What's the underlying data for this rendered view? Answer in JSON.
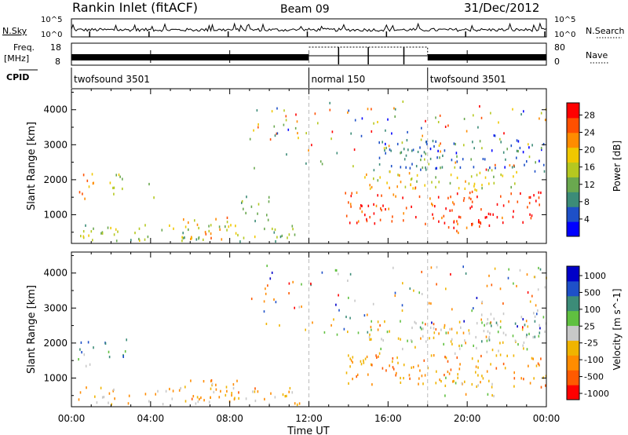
{
  "header": {
    "station": "Rankin Inlet (fitACF)",
    "beam": "Beam 09",
    "date": "31/Dec/2012"
  },
  "top_panels": {
    "nsky_label": "N.Sky",
    "nsearch_label": "N.Search",
    "noise_ticks_left": [
      "10^5",
      "10^0"
    ],
    "noise_ticks_right": [
      "10^5",
      "10^0"
    ],
    "freq_label": "Freq.",
    "freq_unit": "[MHz]",
    "freq_ticks": [
      "18",
      "8"
    ],
    "nave_ticks": [
      "80",
      "0"
    ],
    "nave_label": "Nave",
    "cpid_label": "CPID",
    "cpid_segments": [
      {
        "label": "twofsound 3501",
        "start_hour": 0,
        "end_hour": 12
      },
      {
        "label": "normal 150",
        "start_hour": 12,
        "end_hour": 18
      },
      {
        "label": "twofsound 3501",
        "start_hour": 18,
        "end_hour": 24
      }
    ]
  },
  "xaxis": {
    "title": "Time UT",
    "ticks": [
      "00:00",
      "04:00",
      "08:00",
      "12:00",
      "16:00",
      "20:00",
      "00:00"
    ]
  },
  "chart_data": [
    {
      "type": "heatmap",
      "panel": "power",
      "xlabel": "Time UT",
      "ylabel": "Slant Range [km]",
      "xlim": [
        0,
        24
      ],
      "ylim": [
        180,
        4600
      ],
      "yticks": [
        1000,
        2000,
        3000,
        4000
      ],
      "colorbar": {
        "label": "Power [dB]",
        "ticks": [
          "4",
          "8",
          "12",
          "16",
          "20",
          "24",
          "28"
        ],
        "range": [
          0,
          30
        ],
        "colors": [
          "#0000ff",
          "#1e50c8",
          "#3c8c78",
          "#6aa84f",
          "#b5c820",
          "#f0c800",
          "#ff8c00",
          "#ff5000",
          "#ff0000"
        ]
      },
      "regions": [
        {
          "t0": 0.2,
          "t1": 1.1,
          "r0": 1300,
          "r1": 2200,
          "level": 0.75
        },
        {
          "t0": 1.6,
          "t1": 2.8,
          "r0": 1500,
          "r1": 2150,
          "level": 0.55
        },
        {
          "t0": 3.8,
          "t1": 4.2,
          "r0": 1400,
          "r1": 1900,
          "level": 0.3
        },
        {
          "t0": 0.3,
          "t1": 11.5,
          "r0": 200,
          "r1": 700,
          "level": 0.45
        },
        {
          "t0": 5.5,
          "t1": 8.5,
          "r0": 250,
          "r1": 900,
          "level": 0.7
        },
        {
          "t0": 8.5,
          "t1": 10.0,
          "r0": 700,
          "r1": 1500,
          "level": 0.35
        },
        {
          "t0": 13.8,
          "t1": 24.0,
          "r0": 700,
          "r1": 1650,
          "level": 0.92
        },
        {
          "t0": 14.5,
          "t1": 22.5,
          "r0": 1650,
          "r1": 2200,
          "level": 0.55
        },
        {
          "t0": 18.5,
          "t1": 21.5,
          "r0": 450,
          "r1": 1000,
          "level": 0.95
        },
        {
          "t0": 15.5,
          "t1": 24.0,
          "r0": 2200,
          "r1": 3100,
          "level": 0.2
        },
        {
          "t0": 16.5,
          "t1": 17.5,
          "r0": 1700,
          "r1": 2500,
          "level": 0.65
        }
      ]
    },
    {
      "type": "heatmap",
      "panel": "velocity",
      "xlabel": "Time UT",
      "ylabel": "Slant Range [km]",
      "xlim": [
        0,
        24
      ],
      "ylim": [
        180,
        4600
      ],
      "yticks": [
        1000,
        2000,
        3000,
        4000
      ],
      "colorbar": {
        "label": "Velocity [m s^-1]",
        "ticks": [
          "1000",
          "500",
          "100",
          "25",
          "-25",
          "-100",
          "-500",
          "-1000"
        ],
        "range": [
          -1000,
          1000
        ],
        "colors": [
          "#ff0000",
          "#ff5a00",
          "#ff8c00",
          "#f0b400",
          "#c8c8c8",
          "#60c040",
          "#3c8c78",
          "#1e50c8",
          "#0000c8"
        ]
      },
      "regions": [
        {
          "t0": 0.2,
          "t1": 1.1,
          "r0": 1300,
          "r1": 2200,
          "level": 0.7
        },
        {
          "t0": 1.6,
          "t1": 2.8,
          "r0": 1500,
          "r1": 2150,
          "level": 0.75
        },
        {
          "t0": 0.3,
          "t1": 11.5,
          "r0": 200,
          "r1": 700,
          "level": 0.35
        },
        {
          "t0": 5.5,
          "t1": 8.5,
          "r0": 250,
          "r1": 900,
          "level": 0.3
        },
        {
          "t0": 13.8,
          "t1": 24.0,
          "r0": 700,
          "r1": 1650,
          "level": 0.25
        },
        {
          "t0": 15.0,
          "t1": 23.0,
          "r0": 1650,
          "r1": 2600,
          "level": 0.45
        },
        {
          "t0": 18.5,
          "t1": 21.5,
          "r0": 450,
          "r1": 1000,
          "level": 0.45
        },
        {
          "t0": 20.5,
          "t1": 24.0,
          "r0": 2000,
          "r1": 2900,
          "level": 0.6
        }
      ]
    }
  ]
}
